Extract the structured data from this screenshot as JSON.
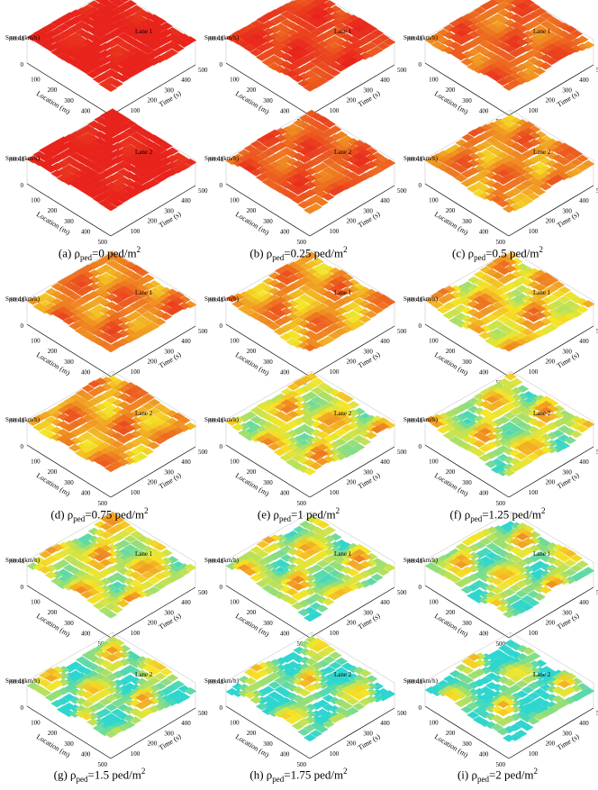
{
  "figure": {
    "axis_labels": {
      "speed": "Speed (km/h)",
      "location": "Location (m)",
      "time": "Time (s)"
    },
    "lane_labels": [
      "Lane 1",
      "Lane 2"
    ],
    "location_ticks": [
      "100",
      "200",
      "300",
      "400",
      "500"
    ],
    "time_ticks": [
      "100",
      "200",
      "300",
      "400",
      "500"
    ],
    "zero_label": "0",
    "speed_tick": "60.48",
    "colors": {
      "high_speed": "#e8231c",
      "mid_speed": "#f6e627",
      "low_speed": "#2fd6cf",
      "grid": "#bbbbbb"
    }
  },
  "panels": [
    {
      "id": "a",
      "caption": {
        "prefix": "(a) ρ",
        "sub": "ped",
        "value": "=0 ped/m",
        "sup": "2"
      }
    },
    {
      "id": "b",
      "caption": {
        "prefix": "(b) ρ",
        "sub": "ped",
        "value": "=0.25 ped/m",
        "sup": "2"
      }
    },
    {
      "id": "c",
      "caption": {
        "prefix": "(c) ρ",
        "sub": "ped",
        "value": "=0.5 ped/m",
        "sup": "2"
      }
    },
    {
      "id": "d",
      "caption": {
        "prefix": "(d) ρ",
        "sub": "ped",
        "value": "=0.75 ped/m",
        "sup": "2"
      }
    },
    {
      "id": "e",
      "caption": {
        "prefix": "(e) ρ",
        "sub": "ped",
        "value": "=1 ped/m",
        "sup": "2"
      }
    },
    {
      "id": "f",
      "caption": {
        "prefix": "(f) ρ",
        "sub": "ped",
        "value": "=1.25 ped/m",
        "sup": "2"
      }
    },
    {
      "id": "g",
      "caption": {
        "prefix": "(g) ρ",
        "sub": "ped",
        "value": "=1.5 ped/m",
        "sup": "2"
      }
    },
    {
      "id": "h",
      "caption": {
        "prefix": "(h) ρ",
        "sub": "ped",
        "value": "=1.75 ped/m",
        "sup": "2"
      }
    },
    {
      "id": "i",
      "caption": {
        "prefix": "(i) ρ",
        "sub": "ped",
        "value": "=2 ped/m",
        "sup": "2"
      }
    }
  ],
  "chart_data": {
    "type": "surface",
    "x_axis": {
      "label": "Location (m)",
      "range": [
        0,
        500
      ]
    },
    "y_axis": {
      "label": "Time (s)",
      "range": [
        0,
        500
      ]
    },
    "z_axis": {
      "label": "Speed (km/h)",
      "range": [
        0,
        60.48
      ]
    },
    "pedestrian_densities": [
      0,
      0.25,
      0.5,
      0.75,
      1,
      1.25,
      1.5,
      1.75,
      2
    ],
    "lanes": [
      "Lane 1",
      "Lane 2"
    ],
    "dominant_speed_level": {
      "a": {
        "Lane 1": 1.0,
        "Lane 2": 1.0
      },
      "b": {
        "Lane 1": 0.92,
        "Lane 2": 0.85
      },
      "c": {
        "Lane 1": 0.82,
        "Lane 2": 0.72
      },
      "d": {
        "Lane 1": 0.75,
        "Lane 2": 0.68
      },
      "e": {
        "Lane 1": 0.68,
        "Lane 2": 0.45
      },
      "f": {
        "Lane 1": 0.55,
        "Lane 2": 0.38
      },
      "g": {
        "Lane 1": 0.42,
        "Lane 2": 0.25
      },
      "h": {
        "Lane 1": 0.35,
        "Lane 2": 0.18
      },
      "i": {
        "Lane 1": 0.3,
        "Lane 2": 0.12
      }
    }
  }
}
